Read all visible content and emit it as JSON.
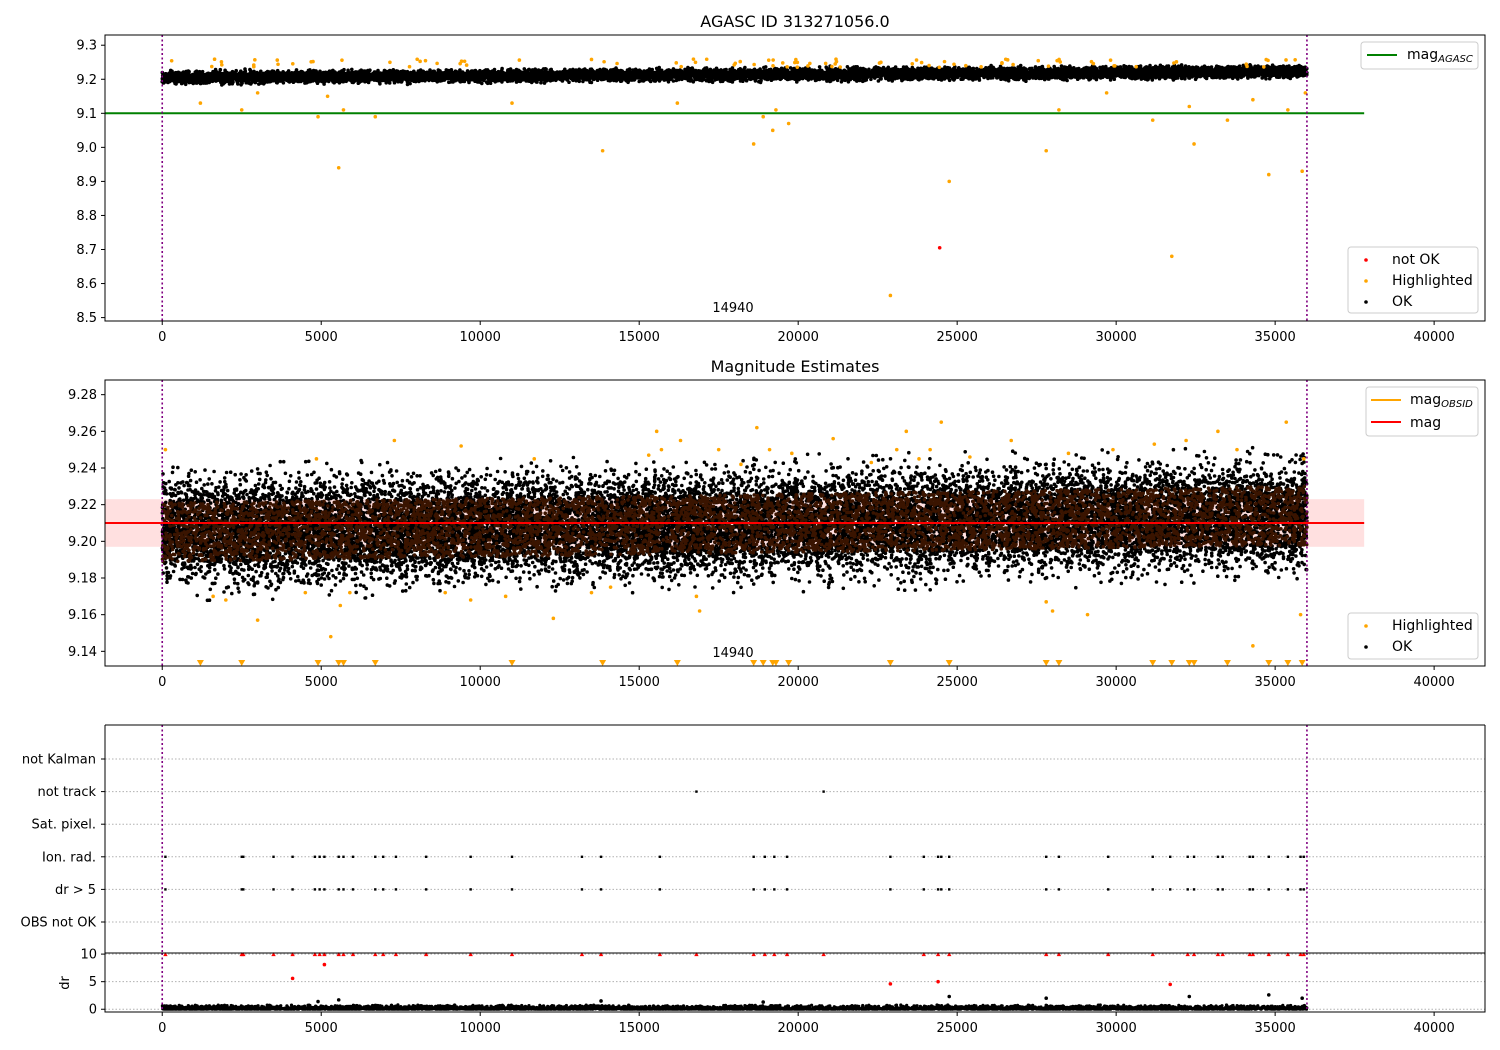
{
  "chart_data": [
    {
      "type": "scatter",
      "title": "AGASC ID 313271056.0",
      "xlim": [
        -1800,
        41600
      ],
      "ylim": [
        8.49,
        9.33
      ],
      "xticks": [
        0,
        5000,
        10000,
        15000,
        20000,
        25000,
        30000,
        35000,
        40000
      ],
      "yticks": [
        8.5,
        8.6,
        8.7,
        8.8,
        8.9,
        9.0,
        9.1,
        9.2,
        9.3
      ],
      "ytick_labels": [
        "8.5",
        "8.6",
        "8.7",
        "8.8",
        "8.9",
        "9.0",
        "9.1",
        "9.2",
        "9.3"
      ],
      "obsid_label": {
        "text": "14940",
        "x": 17800
      },
      "obsid_boundaries": [
        0,
        36000
      ],
      "reference_line": {
        "name": "mag_AGASC",
        "y": 9.1,
        "x_range": [
          -1800,
          37800
        ],
        "color": "#008000"
      },
      "ok_band": {
        "x_range": [
          0,
          36000
        ],
        "center_start": 9.205,
        "center_end": 9.222,
        "half_width": 0.025,
        "color": "#000000"
      },
      "series": [
        {
          "name": "not OK",
          "color": "#ff0000",
          "points": [
            [
              24450,
              8.705
            ]
          ]
        },
        {
          "name": "Highlighted",
          "color": "#ffa500",
          "points": [
            [
              1200,
              9.13
            ],
            [
              2500,
              9.11
            ],
            [
              3000,
              9.16
            ],
            [
              4900,
              9.09
            ],
            [
              5200,
              9.15
            ],
            [
              5550,
              8.94
            ],
            [
              5700,
              9.11
            ],
            [
              6700,
              9.09
            ],
            [
              11000,
              9.13
            ],
            [
              13850,
              8.99
            ],
            [
              16200,
              9.13
            ],
            [
              18600,
              9.01
            ],
            [
              18900,
              9.09
            ],
            [
              19200,
              9.05
            ],
            [
              19300,
              9.11
            ],
            [
              19700,
              9.07
            ],
            [
              22900,
              8.565
            ],
            [
              24750,
              8.9
            ],
            [
              27800,
              8.99
            ],
            [
              28200,
              9.11
            ],
            [
              29700,
              9.16
            ],
            [
              31150,
              9.08
            ],
            [
              31750,
              8.68
            ],
            [
              32300,
              9.12
            ],
            [
              32450,
              9.01
            ],
            [
              33500,
              9.08
            ],
            [
              34300,
              9.14
            ],
            [
              34800,
              8.92
            ],
            [
              35400,
              9.11
            ],
            [
              35850,
              8.93
            ],
            [
              35950,
              9.16
            ]
          ]
        }
      ],
      "legends": [
        {
          "position": "top-right",
          "entries": [
            {
              "label": "mag",
              "subscript": "AGASC",
              "marker": "line",
              "color": "#008000"
            }
          ]
        },
        {
          "position": "lower-right",
          "entries": [
            {
              "label": "not OK",
              "marker": "dot",
              "color": "#ff0000"
            },
            {
              "label": "Highlighted",
              "marker": "dot",
              "color": "#ffa500"
            },
            {
              "label": "OK",
              "marker": "dot",
              "color": "#000000"
            }
          ]
        }
      ]
    },
    {
      "type": "scatter",
      "title": "Magnitude Estimates",
      "xlim": [
        -1800,
        41600
      ],
      "ylim": [
        9.132,
        9.288
      ],
      "xticks": [
        0,
        5000,
        10000,
        15000,
        20000,
        25000,
        30000,
        35000,
        40000
      ],
      "yticks": [
        9.14,
        9.16,
        9.18,
        9.2,
        9.22,
        9.24,
        9.26,
        9.28
      ],
      "ytick_labels": [
        "9.14",
        "9.16",
        "9.18",
        "9.20",
        "9.22",
        "9.24",
        "9.26",
        "9.28"
      ],
      "obsid_label": {
        "text": "14940",
        "x": 17800
      },
      "obsid_boundaries": [
        0,
        36000
      ],
      "mag_line": {
        "name": "mag",
        "y": 9.21,
        "x_range": [
          -1800,
          37800
        ],
        "color": "#ff0000"
      },
      "mag_band": {
        "y_range": [
          9.197,
          9.223
        ],
        "x_range": [
          -1800,
          37800
        ],
        "color": "#ff0000"
      },
      "obsid_mag_line": {
        "name": "mag_OBSID",
        "y": 9.21,
        "x_range": [
          0,
          36000
        ],
        "color": "#ffa500"
      },
      "ok_band": {
        "x_range": [
          0,
          36000
        ],
        "center_start": 9.205,
        "center_end": 9.214,
        "half_width": 0.03,
        "color": "#000000"
      },
      "series": [
        {
          "name": "Highlighted",
          "color": "#ffa500",
          "points": [
            [
              100,
              9.25
            ],
            [
              1600,
              9.17
            ],
            [
              2000,
              9.168
            ],
            [
              3000,
              9.157
            ],
            [
              4500,
              9.172
            ],
            [
              4850,
              9.245
            ],
            [
              5300,
              9.148
            ],
            [
              5600,
              9.165
            ],
            [
              5900,
              9.172
            ],
            [
              7300,
              9.255
            ],
            [
              8900,
              9.172
            ],
            [
              9400,
              9.252
            ],
            [
              9700,
              9.168
            ],
            [
              10800,
              9.17
            ],
            [
              11700,
              9.245
            ],
            [
              12300,
              9.158
            ],
            [
              13500,
              9.172
            ],
            [
              14100,
              9.175
            ],
            [
              15300,
              9.247
            ],
            [
              15550,
              9.26
            ],
            [
              15700,
              9.25
            ],
            [
              16300,
              9.255
            ],
            [
              16800,
              9.17
            ],
            [
              16900,
              9.162
            ],
            [
              17500,
              9.25
            ],
            [
              18200,
              9.242
            ],
            [
              18700,
              9.262
            ],
            [
              19100,
              9.25
            ],
            [
              19800,
              9.248
            ],
            [
              21100,
              9.256
            ],
            [
              22300,
              9.243
            ],
            [
              23100,
              9.25
            ],
            [
              23400,
              9.26
            ],
            [
              23800,
              9.245
            ],
            [
              24150,
              9.25
            ],
            [
              24500,
              9.265
            ],
            [
              25400,
              9.246
            ],
            [
              26700,
              9.255
            ],
            [
              27800,
              9.167
            ],
            [
              28000,
              9.162
            ],
            [
              28500,
              9.248
            ],
            [
              29100,
              9.16
            ],
            [
              29900,
              9.25
            ],
            [
              31200,
              9.253
            ],
            [
              32200,
              9.255
            ],
            [
              33200,
              9.26
            ],
            [
              33800,
              9.25
            ],
            [
              34300,
              9.143
            ],
            [
              35350,
              9.265
            ],
            [
              35800,
              9.16
            ],
            [
              35900,
              9.245
            ]
          ]
        },
        {
          "name": "Highlighted (below axis)",
          "color": "#ffa500",
          "marker": "triangle-down",
          "x": [
            1200,
            2500,
            4900,
            5550,
            5700,
            6700,
            11000,
            13850,
            16200,
            18600,
            18900,
            19200,
            19300,
            19700,
            22900,
            24750,
            27800,
            28200,
            31150,
            31750,
            32300,
            32450,
            33500,
            34800,
            35400,
            35850
          ]
        }
      ],
      "legends": [
        {
          "position": "top-right",
          "entries": [
            {
              "label": "mag",
              "subscript": "OBSID",
              "marker": "line",
              "color": "#ffa500"
            },
            {
              "label": "mag",
              "marker": "line",
              "color": "#ff0000"
            }
          ]
        },
        {
          "position": "lower-right",
          "entries": [
            {
              "label": "Highlighted",
              "marker": "dot",
              "color": "#ffa500"
            },
            {
              "label": "OK",
              "marker": "dot",
              "color": "#000000"
            }
          ]
        }
      ]
    },
    {
      "type": "scatter",
      "xlim": [
        -1800,
        41600
      ],
      "categories": [
        "not Kalman",
        "not track",
        "Sat. pixel.",
        "Ion. rad.",
        "dr > 5",
        "OBS not OK"
      ],
      "obsid_boundaries": [
        0,
        36000
      ],
      "flag_points": {
        "not track": [
          16800,
          20800
        ],
        "Ion. rad.": [
          100,
          2500,
          2550,
          3500,
          4100,
          4800,
          4950,
          5100,
          5550,
          5700,
          6000,
          6700,
          6950,
          7350,
          8300,
          9700,
          11000,
          13200,
          13800,
          15650,
          18600,
          18950,
          19250,
          19650,
          22900,
          23950,
          24400,
          24500,
          24750,
          27800,
          28200,
          29750,
          31150,
          31700,
          32250,
          32450,
          33200,
          33350,
          34200,
          34300,
          34800,
          35400,
          35800,
          35900
        ],
        "dr > 5": [
          100,
          2500,
          2550,
          3500,
          4100,
          4800,
          4950,
          5100,
          5550,
          5700,
          6000,
          6700,
          6950,
          7350,
          8300,
          9700,
          11000,
          13200,
          13800,
          15650,
          18600,
          18950,
          19250,
          19650,
          22900,
          23950,
          24400,
          24500,
          24750,
          27800,
          28200,
          29750,
          31150,
          31700,
          32250,
          32450,
          33200,
          33350,
          34200,
          34300,
          34800,
          35400,
          35800,
          35900
        ]
      }
    },
    {
      "type": "scatter",
      "xlim": [
        -1800,
        41600
      ],
      "ylabel": "dr",
      "ylim": [
        -0.5,
        10.2
      ],
      "yticks": [
        0,
        5,
        10
      ],
      "ytick_labels": [
        "0",
        "5",
        "10"
      ],
      "xticks": [
        0,
        5000,
        10000,
        15000,
        20000,
        25000,
        30000,
        35000,
        40000
      ],
      "obsid_boundaries": [
        0,
        36000
      ],
      "series": [
        {
          "name": "dr > 5",
          "color": "#ff0000",
          "marker": "triangle-up",
          "x_at_10": [
            100,
            2500,
            2550,
            3500,
            4100,
            4800,
            4950,
            5100,
            5550,
            5700,
            6000,
            6700,
            6950,
            7350,
            8300,
            9700,
            11000,
            13200,
            13800,
            15650,
            16800,
            18600,
            18950,
            19250,
            19650,
            20800,
            23950,
            24400,
            24750,
            27800,
            28200,
            29750,
            31150,
            32250,
            32450,
            33200,
            33350,
            34200,
            34300,
            34800,
            35400,
            35800,
            35900
          ]
        },
        {
          "name": "dr > 5 (values)",
          "color": "#ff0000",
          "points": [
            [
              4100,
              5.6
            ],
            [
              5100,
              8.1
            ],
            [
              22900,
              4.6
            ],
            [
              24400,
              5.0
            ],
            [
              31700,
              4.5
            ]
          ]
        },
        {
          "name": "OK dr",
          "color": "#000000",
          "points": [
            [
              4900,
              1.4
            ],
            [
              5550,
              1.7
            ],
            [
              13800,
              1.5
            ],
            [
              18900,
              1.3
            ],
            [
              24750,
              2.3
            ],
            [
              27800,
              2.0
            ],
            [
              32300,
              2.3
            ],
            [
              34800,
              2.6
            ],
            [
              35850,
              2.0
            ]
          ]
        }
      ]
    }
  ],
  "x_tick_labels": [
    "0",
    "5000",
    "10000",
    "15000",
    "20000",
    "25000",
    "30000",
    "35000",
    "40000"
  ]
}
